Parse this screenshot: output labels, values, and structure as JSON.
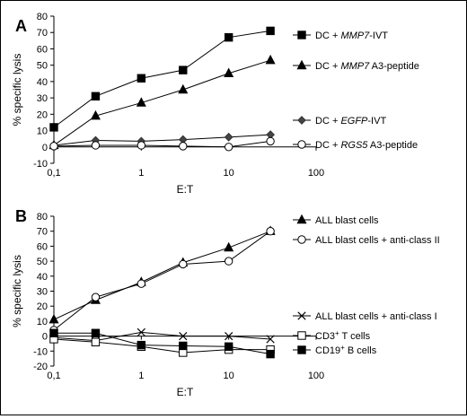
{
  "chart_data": [
    {
      "panel_label": "A",
      "type": "line",
      "x_scale": "log",
      "xlabel": "E:T",
      "ylabel": "% specific lysis",
      "xlim": [
        0.1,
        100
      ],
      "ylim": [
        -10,
        80
      ],
      "x_ticks": [
        "0,1",
        "1",
        "10",
        "100"
      ],
      "y_ticks": [
        "-10",
        "0",
        "10",
        "20",
        "30",
        "40",
        "50",
        "60",
        "70",
        "80"
      ],
      "grid": false,
      "legend_position": "right",
      "series": [
        {
          "legend": [
            {
              "t": "DC + "
            },
            {
              "t": "MMP7",
              "i": true
            },
            {
              "t": "-IVT"
            }
          ],
          "marker": "square-filled",
          "x": [
            0.1,
            0.3,
            1,
            3,
            10,
            30
          ],
          "values": [
            12,
            31,
            42,
            47,
            67,
            71
          ]
        },
        {
          "legend": [
            {
              "t": "DC + "
            },
            {
              "t": "MMP7",
              "i": true
            },
            {
              "t": " A3-peptide"
            }
          ],
          "marker": "triangle-filled",
          "x": [
            0.1,
            0.3,
            1,
            3,
            10,
            30
          ],
          "values": [
            1,
            19,
            27,
            35,
            45,
            53
          ]
        },
        {
          "legend": [
            {
              "t": "DC + "
            },
            {
              "t": "EGFP",
              "i": true
            },
            {
              "t": "-IVT"
            }
          ],
          "marker": "diamond-filled",
          "x": [
            0.1,
            0.3,
            1,
            3,
            10,
            30
          ],
          "values": [
            1,
            4,
            3.5,
            4.5,
            6,
            7.5
          ]
        },
        {
          "legend": [
            {
              "t": "DC + "
            },
            {
              "t": "RGS5",
              "i": true
            },
            {
              "t": " A3-peptide"
            }
          ],
          "marker": "circle-open",
          "x": [
            0.1,
            0.3,
            1,
            3,
            10,
            30
          ],
          "values": [
            0.5,
            1,
            1,
            0.5,
            0,
            3.5
          ]
        }
      ]
    },
    {
      "panel_label": "B",
      "type": "line",
      "x_scale": "log",
      "xlabel": "E:T",
      "ylabel": "% specific lysis",
      "xlim": [
        0.1,
        100
      ],
      "ylim": [
        -20,
        80
      ],
      "x_ticks": [
        "0,1",
        "1",
        "10",
        "100"
      ],
      "y_ticks": [
        "-20",
        "-10",
        "0",
        "10",
        "20",
        "30",
        "40",
        "50",
        "60",
        "70",
        "80"
      ],
      "grid": false,
      "legend_position": "right",
      "series": [
        {
          "legend": [
            {
              "t": "ALL blast cells"
            }
          ],
          "marker": "triangle-filled",
          "x": [
            0.1,
            0.3,
            1,
            3,
            10,
            30
          ],
          "values": [
            11,
            24,
            36,
            49,
            59,
            70
          ]
        },
        {
          "legend": [
            {
              "t": "ALL blast cells + anti-class II"
            }
          ],
          "marker": "circle-open",
          "x": [
            0.1,
            0.3,
            1,
            3,
            10,
            30
          ],
          "values": [
            4,
            26,
            35,
            48,
            50,
            70
          ]
        },
        {
          "legend": [
            {
              "t": "ALL blast cells + anti-class I"
            }
          ],
          "marker": "x",
          "x": [
            0.1,
            0.3,
            1,
            3,
            10,
            30
          ],
          "values": [
            -1,
            -3,
            2.5,
            0,
            0,
            -2
          ]
        },
        {
          "legend": [
            {
              "t": "CD3"
            },
            {
              "t": "+",
              "sup": true
            },
            {
              "t": " T cells"
            }
          ],
          "marker": "square-open",
          "x": [
            0.1,
            0.3,
            1,
            3,
            10,
            30
          ],
          "values": [
            -2,
            -4,
            -7,
            -11,
            -9,
            -9
          ]
        },
        {
          "legend": [
            {
              "t": "CD19"
            },
            {
              "t": "+",
              "sup": true
            },
            {
              "t": " B cells"
            }
          ],
          "marker": "square-filled",
          "x": [
            0.1,
            0.3,
            1,
            3,
            10,
            30
          ],
          "values": [
            2,
            2,
            -6,
            -6.5,
            -7,
            -12
          ]
        }
      ]
    }
  ]
}
